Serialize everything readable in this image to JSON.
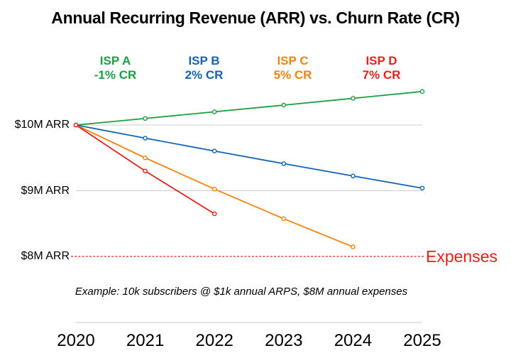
{
  "title": "Annual Recurring Revenue (ARR) vs. Churn Rate (CR)",
  "note": "Example: 10k subscribers @ $1k annual ARPS, $8M annual expenses",
  "chart_data": {
    "type": "line",
    "title": "Annual Recurring Revenue (ARR) vs. Churn Rate (CR)",
    "x": [
      "2020",
      "2021",
      "2022",
      "2023",
      "2024",
      "2025"
    ],
    "series": [
      {
        "name": "ISP A",
        "cr_label": "-1% CR",
        "churn_rate_pct": -1,
        "color": "#1aa041",
        "values": [
          10.0,
          10.1,
          10.201,
          10.303,
          10.406,
          10.51
        ]
      },
      {
        "name": "ISP B",
        "cr_label": "2% CR",
        "churn_rate_pct": 2,
        "color": "#1464b4",
        "values": [
          10.0,
          9.8,
          9.604,
          9.412,
          9.224,
          9.039
        ]
      },
      {
        "name": "ISP C",
        "cr_label": "5% CR",
        "churn_rate_pct": 5,
        "color": "#f8820e",
        "values": [
          10.0,
          9.5,
          9.025,
          8.574,
          8.145,
          null
        ]
      },
      {
        "name": "ISP D",
        "cr_label": "7% CR",
        "churn_rate_pct": 7,
        "color": "#e8201a",
        "values": [
          10.0,
          9.3,
          8.649,
          null,
          null,
          null
        ]
      }
    ],
    "y_ticks": [
      {
        "value": 10,
        "label": "$10M ARR"
      },
      {
        "value": 9,
        "label": "$9M ARR"
      },
      {
        "value": 8,
        "label": "$8M ARR"
      }
    ],
    "expenses_line": {
      "value": 8,
      "label": "Expenses",
      "style": "dashed",
      "color": "#e8201a"
    },
    "ylim": [
      7.8,
      10.6
    ],
    "grid": "horizontal",
    "grid_color": "#cccccc",
    "axis_color": "#c8c8c8",
    "legend_position": "top",
    "marker": "open-circle"
  }
}
